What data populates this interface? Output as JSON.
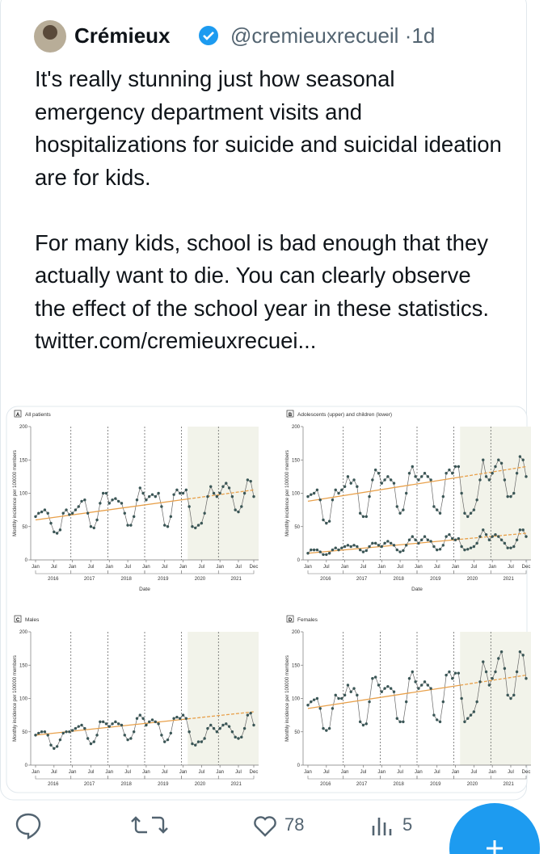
{
  "tweet": {
    "name": "Crémieux",
    "handle": "@cremieuxrecueil",
    "separator": "·",
    "time": "1d",
    "paragraphs": [
      "It's really stunning just how seasonal emergency department visits and hospitalizations for suicide and suicidal ideation are for kids.",
      "For many kids, school is bad enough that they actually want to die. You can clearly observe the effect of the school year in these statistics. twitter.com/​cremieuxrecuei..."
    ],
    "likes": "78",
    "views": "5"
  },
  "chart_data": [
    {
      "type": "line",
      "letter": "A",
      "title": "All patients",
      "y_label": "Monthly incidence per 100000 members",
      "x_label": "Date",
      "xtick_labels": [
        "Jan",
        "Jul",
        "Jan",
        "Jul",
        "Jan",
        "Jul",
        "Jan",
        "Jul",
        "Jan",
        "Jul",
        "Jan",
        "Jul",
        "Dec"
      ],
      "years": [
        "2016",
        "2017",
        "2018",
        "2019",
        "2020",
        "2021"
      ],
      "ylim": [
        0,
        200
      ],
      "yticks": [
        0,
        50,
        100,
        150,
        200
      ],
      "trend_color": "#e8a04a",
      "series": [
        {
          "color": "#3a5656",
          "trend": [
            60,
            105
          ],
          "values": [
            65,
            70,
            72,
            75,
            70,
            55,
            42,
            40,
            45,
            70,
            75,
            68,
            70,
            75,
            80,
            88,
            90,
            70,
            50,
            48,
            60,
            85,
            100,
            100,
            85,
            90,
            92,
            88,
            85,
            70,
            52,
            52,
            65,
            90,
            108,
            100,
            90,
            95,
            98,
            95,
            100,
            80,
            52,
            50,
            65,
            98,
            105,
            100,
            100,
            105,
            80,
            50,
            48,
            52,
            55,
            70,
            95,
            110,
            100,
            95,
            100,
            110,
            115,
            108,
            95,
            75,
            72,
            80,
            100,
            120,
            118,
            95
          ]
        }
      ]
    },
    {
      "type": "line",
      "letter": "B",
      "title": "Adolescents (upper) and children (lower)",
      "y_label": "Monthly incidence per 100000 members",
      "x_label": "Date",
      "xtick_labels": [
        "Jan",
        "Jul",
        "Jan",
        "Jul",
        "Jan",
        "Jul",
        "Jan",
        "Jul",
        "Jan",
        "Jul",
        "Jan",
        "Jul",
        "Dec"
      ],
      "years": [
        "2016",
        "2017",
        "2018",
        "2019",
        "2020",
        "2021"
      ],
      "ylim": [
        0,
        200
      ],
      "yticks": [
        0,
        50,
        100,
        150,
        200
      ],
      "trend_color": "#e8a04a",
      "series": [
        {
          "color": "#3a5656",
          "trend": [
            88,
            140
          ],
          "values": [
            95,
            98,
            100,
            105,
            90,
            60,
            55,
            58,
            90,
            105,
            100,
            105,
            110,
            125,
            115,
            120,
            110,
            70,
            65,
            65,
            95,
            120,
            135,
            130,
            115,
            120,
            125,
            120,
            115,
            80,
            70,
            75,
            100,
            130,
            140,
            125,
            120,
            125,
            130,
            125,
            120,
            80,
            75,
            70,
            95,
            130,
            135,
            130,
            140,
            140,
            100,
            70,
            65,
            70,
            75,
            90,
            120,
            150,
            125,
            120,
            130,
            140,
            150,
            145,
            120,
            95,
            95,
            100,
            130,
            155,
            150,
            125
          ]
        },
        {
          "color": "#3a5656",
          "trend": [
            10,
            40
          ],
          "values": [
            10,
            15,
            15,
            15,
            12,
            8,
            8,
            10,
            15,
            18,
            15,
            18,
            20,
            22,
            20,
            22,
            20,
            15,
            12,
            14,
            20,
            25,
            25,
            22,
            20,
            25,
            28,
            25,
            22,
            15,
            12,
            14,
            22,
            30,
            35,
            30,
            25,
            30,
            35,
            30,
            28,
            20,
            15,
            16,
            22,
            35,
            38,
            32,
            30,
            32,
            20,
            15,
            16,
            18,
            20,
            25,
            35,
            45,
            38,
            30,
            35,
            38,
            35,
            30,
            25,
            18,
            18,
            20,
            30,
            45,
            45,
            35
          ]
        }
      ]
    },
    {
      "type": "line",
      "letter": "C",
      "title": "Males",
      "y_label": "Monthly incidence per 100000 members",
      "xtick_labels": [
        "Jan",
        "Jul",
        "Jan",
        "Jul",
        "Jan",
        "Jul",
        "Jan",
        "Jul",
        "Jan",
        "Jul",
        "Jan",
        "Jul",
        "Dec"
      ],
      "years": [
        "2016",
        "2017",
        "2018",
        "2019",
        "2020",
        "2021"
      ],
      "ylim": [
        0,
        200
      ],
      "yticks": [
        0,
        50,
        100,
        150,
        200
      ],
      "trend_color": "#e8a04a",
      "series": [
        {
          "color": "#3a5656",
          "trend": [
            45,
            80
          ],
          "values": [
            45,
            48,
            50,
            50,
            45,
            30,
            25,
            28,
            38,
            48,
            50,
            50,
            52,
            55,
            58,
            60,
            55,
            40,
            32,
            35,
            45,
            65,
            65,
            62,
            58,
            62,
            65,
            62,
            60,
            45,
            38,
            40,
            50,
            70,
            75,
            70,
            60,
            65,
            68,
            65,
            62,
            45,
            35,
            38,
            48,
            70,
            72,
            70,
            75,
            70,
            50,
            32,
            30,
            35,
            35,
            40,
            55,
            60,
            55,
            50,
            55,
            60,
            62,
            58,
            50,
            42,
            40,
            42,
            55,
            75,
            78,
            60
          ]
        }
      ]
    },
    {
      "type": "line",
      "letter": "D",
      "title": "Females",
      "y_label": "Monthly incidence per 100000 members",
      "xtick_labels": [
        "Jan",
        "Jul",
        "Jan",
        "Jul",
        "Jan",
        "Jul",
        "Jan",
        "Jul",
        "Jan",
        "Jul",
        "Jan",
        "Jul",
        "Dec"
      ],
      "years": [
        "2016",
        "2017",
        "2018",
        "2019",
        "2020",
        "2021"
      ],
      "ylim": [
        0,
        200
      ],
      "yticks": [
        0,
        50,
        100,
        150,
        200
      ],
      "trend_color": "#e8a04a",
      "series": [
        {
          "color": "#3a5656",
          "trend": [
            85,
            135
          ],
          "values": [
            90,
            95,
            98,
            100,
            85,
            55,
            52,
            55,
            85,
            105,
            100,
            100,
            105,
            120,
            110,
            115,
            105,
            65,
            60,
            62,
            95,
            130,
            132,
            120,
            110,
            115,
            118,
            115,
            110,
            70,
            65,
            65,
            95,
            130,
            140,
            125,
            115,
            120,
            125,
            120,
            115,
            75,
            68,
            65,
            95,
            135,
            140,
            130,
            138,
            138,
            100,
            65,
            70,
            75,
            80,
            95,
            125,
            155,
            140,
            120,
            130,
            140,
            160,
            170,
            145,
            105,
            100,
            105,
            140,
            170,
            165,
            130
          ]
        }
      ]
    }
  ]
}
